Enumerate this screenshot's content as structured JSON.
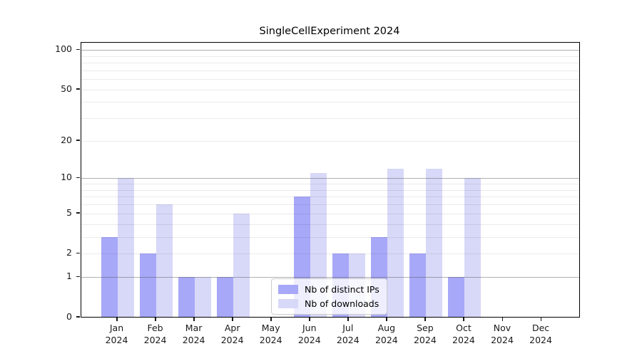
{
  "chart_data": {
    "type": "bar",
    "title": "SingleCellExperiment 2024",
    "categories": [
      "Jan",
      "Feb",
      "Mar",
      "Apr",
      "May",
      "Jun",
      "Jul",
      "Aug",
      "Sep",
      "Oct",
      "Nov",
      "Dec"
    ],
    "year_label": "2024",
    "series": [
      {
        "name": "Nb of distinct IPs",
        "color": "#a8a8f8",
        "values": [
          3,
          2,
          1,
          1,
          0,
          7,
          2,
          3,
          2,
          1,
          0,
          0
        ]
      },
      {
        "name": "Nb of downloads",
        "color": "#d8d8f8",
        "values": [
          10,
          6,
          1,
          5,
          0,
          11,
          2,
          12,
          12,
          10,
          0,
          0
        ]
      }
    ],
    "yticks": [
      0,
      1,
      2,
      5,
      10,
      20,
      50,
      100
    ],
    "major_grid_values": [
      1,
      10,
      100
    ],
    "minor_grid_values": [
      2,
      3,
      4,
      5,
      6,
      7,
      8,
      9,
      20,
      30,
      40,
      50,
      60,
      70,
      80,
      90
    ],
    "scale": "log10(1+y)",
    "ylim": [
      0,
      114
    ],
    "xlabel": "",
    "ylabel": "",
    "grid": true,
    "legend_position": "lower center",
    "colors": {
      "distinct_ips": "#a8a8f8",
      "downloads": "#d8d8f8",
      "major_grid": "#b0b0b0",
      "minor_grid": "#e8e8e8"
    }
  }
}
